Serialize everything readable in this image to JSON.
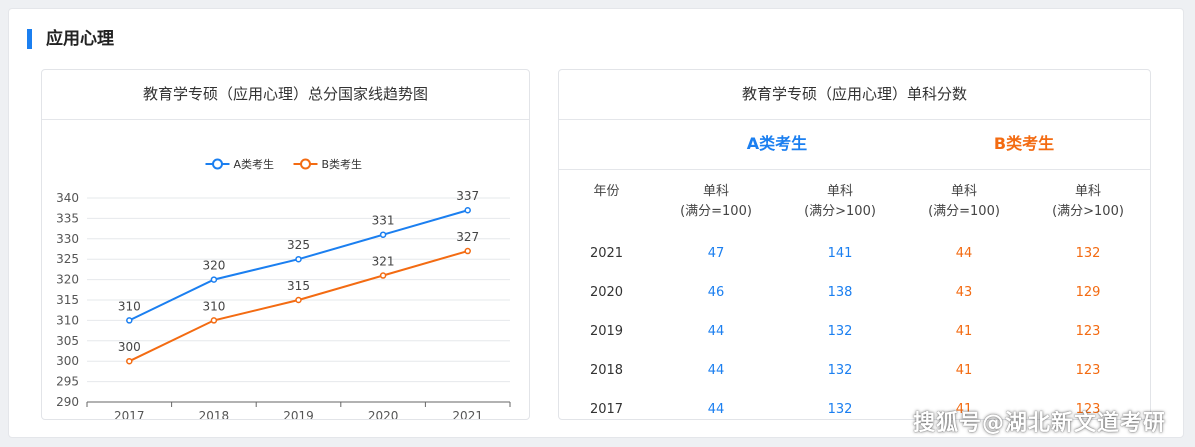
{
  "section": {
    "title": "应用心理"
  },
  "chart_card": {
    "title": "教育学专硕（应用心理）总分国家线趋势图"
  },
  "colors": {
    "a": "#1b7ff0",
    "b": "#f36b12"
  },
  "chart_data": {
    "type": "line",
    "categories": [
      "2017",
      "2018",
      "2019",
      "2020",
      "2021"
    ],
    "series": [
      {
        "name": "A类考生",
        "values": [
          310,
          320,
          325,
          331,
          337
        ],
        "color": "#1b7ff0"
      },
      {
        "name": "B类考生",
        "values": [
          300,
          310,
          315,
          321,
          327
        ],
        "color": "#f36b12"
      }
    ],
    "ylim": [
      290,
      340
    ],
    "yticks": [
      290,
      295,
      300,
      305,
      310,
      315,
      320,
      325,
      330,
      335,
      340
    ],
    "legend": "top-center",
    "grid": true,
    "data_labels": true
  },
  "table_card": {
    "title": "教育学专硕（应用心理）单科分数",
    "group_a": "A类考生",
    "group_b": "B类考生",
    "headers": {
      "year": "年份",
      "col1": [
        "单科",
        "(满分=100)"
      ],
      "col2": [
        "单科",
        "(满分>100)"
      ],
      "col3": [
        "单科",
        "(满分=100)"
      ],
      "col4": [
        "单科",
        "(满分>100)"
      ]
    },
    "rows": [
      {
        "year": "2021",
        "a1": "47",
        "a2": "141",
        "b1": "44",
        "b2": "132"
      },
      {
        "year": "2020",
        "a1": "46",
        "a2": "138",
        "b1": "43",
        "b2": "129"
      },
      {
        "year": "2019",
        "a1": "44",
        "a2": "132",
        "b1": "41",
        "b2": "123"
      },
      {
        "year": "2018",
        "a1": "44",
        "a2": "132",
        "b1": "41",
        "b2": "123"
      },
      {
        "year": "2017",
        "a1": "44",
        "a2": "132",
        "b1": "41",
        "b2": "123"
      }
    ]
  },
  "watermark": "搜狐号@湖北新文道考研"
}
